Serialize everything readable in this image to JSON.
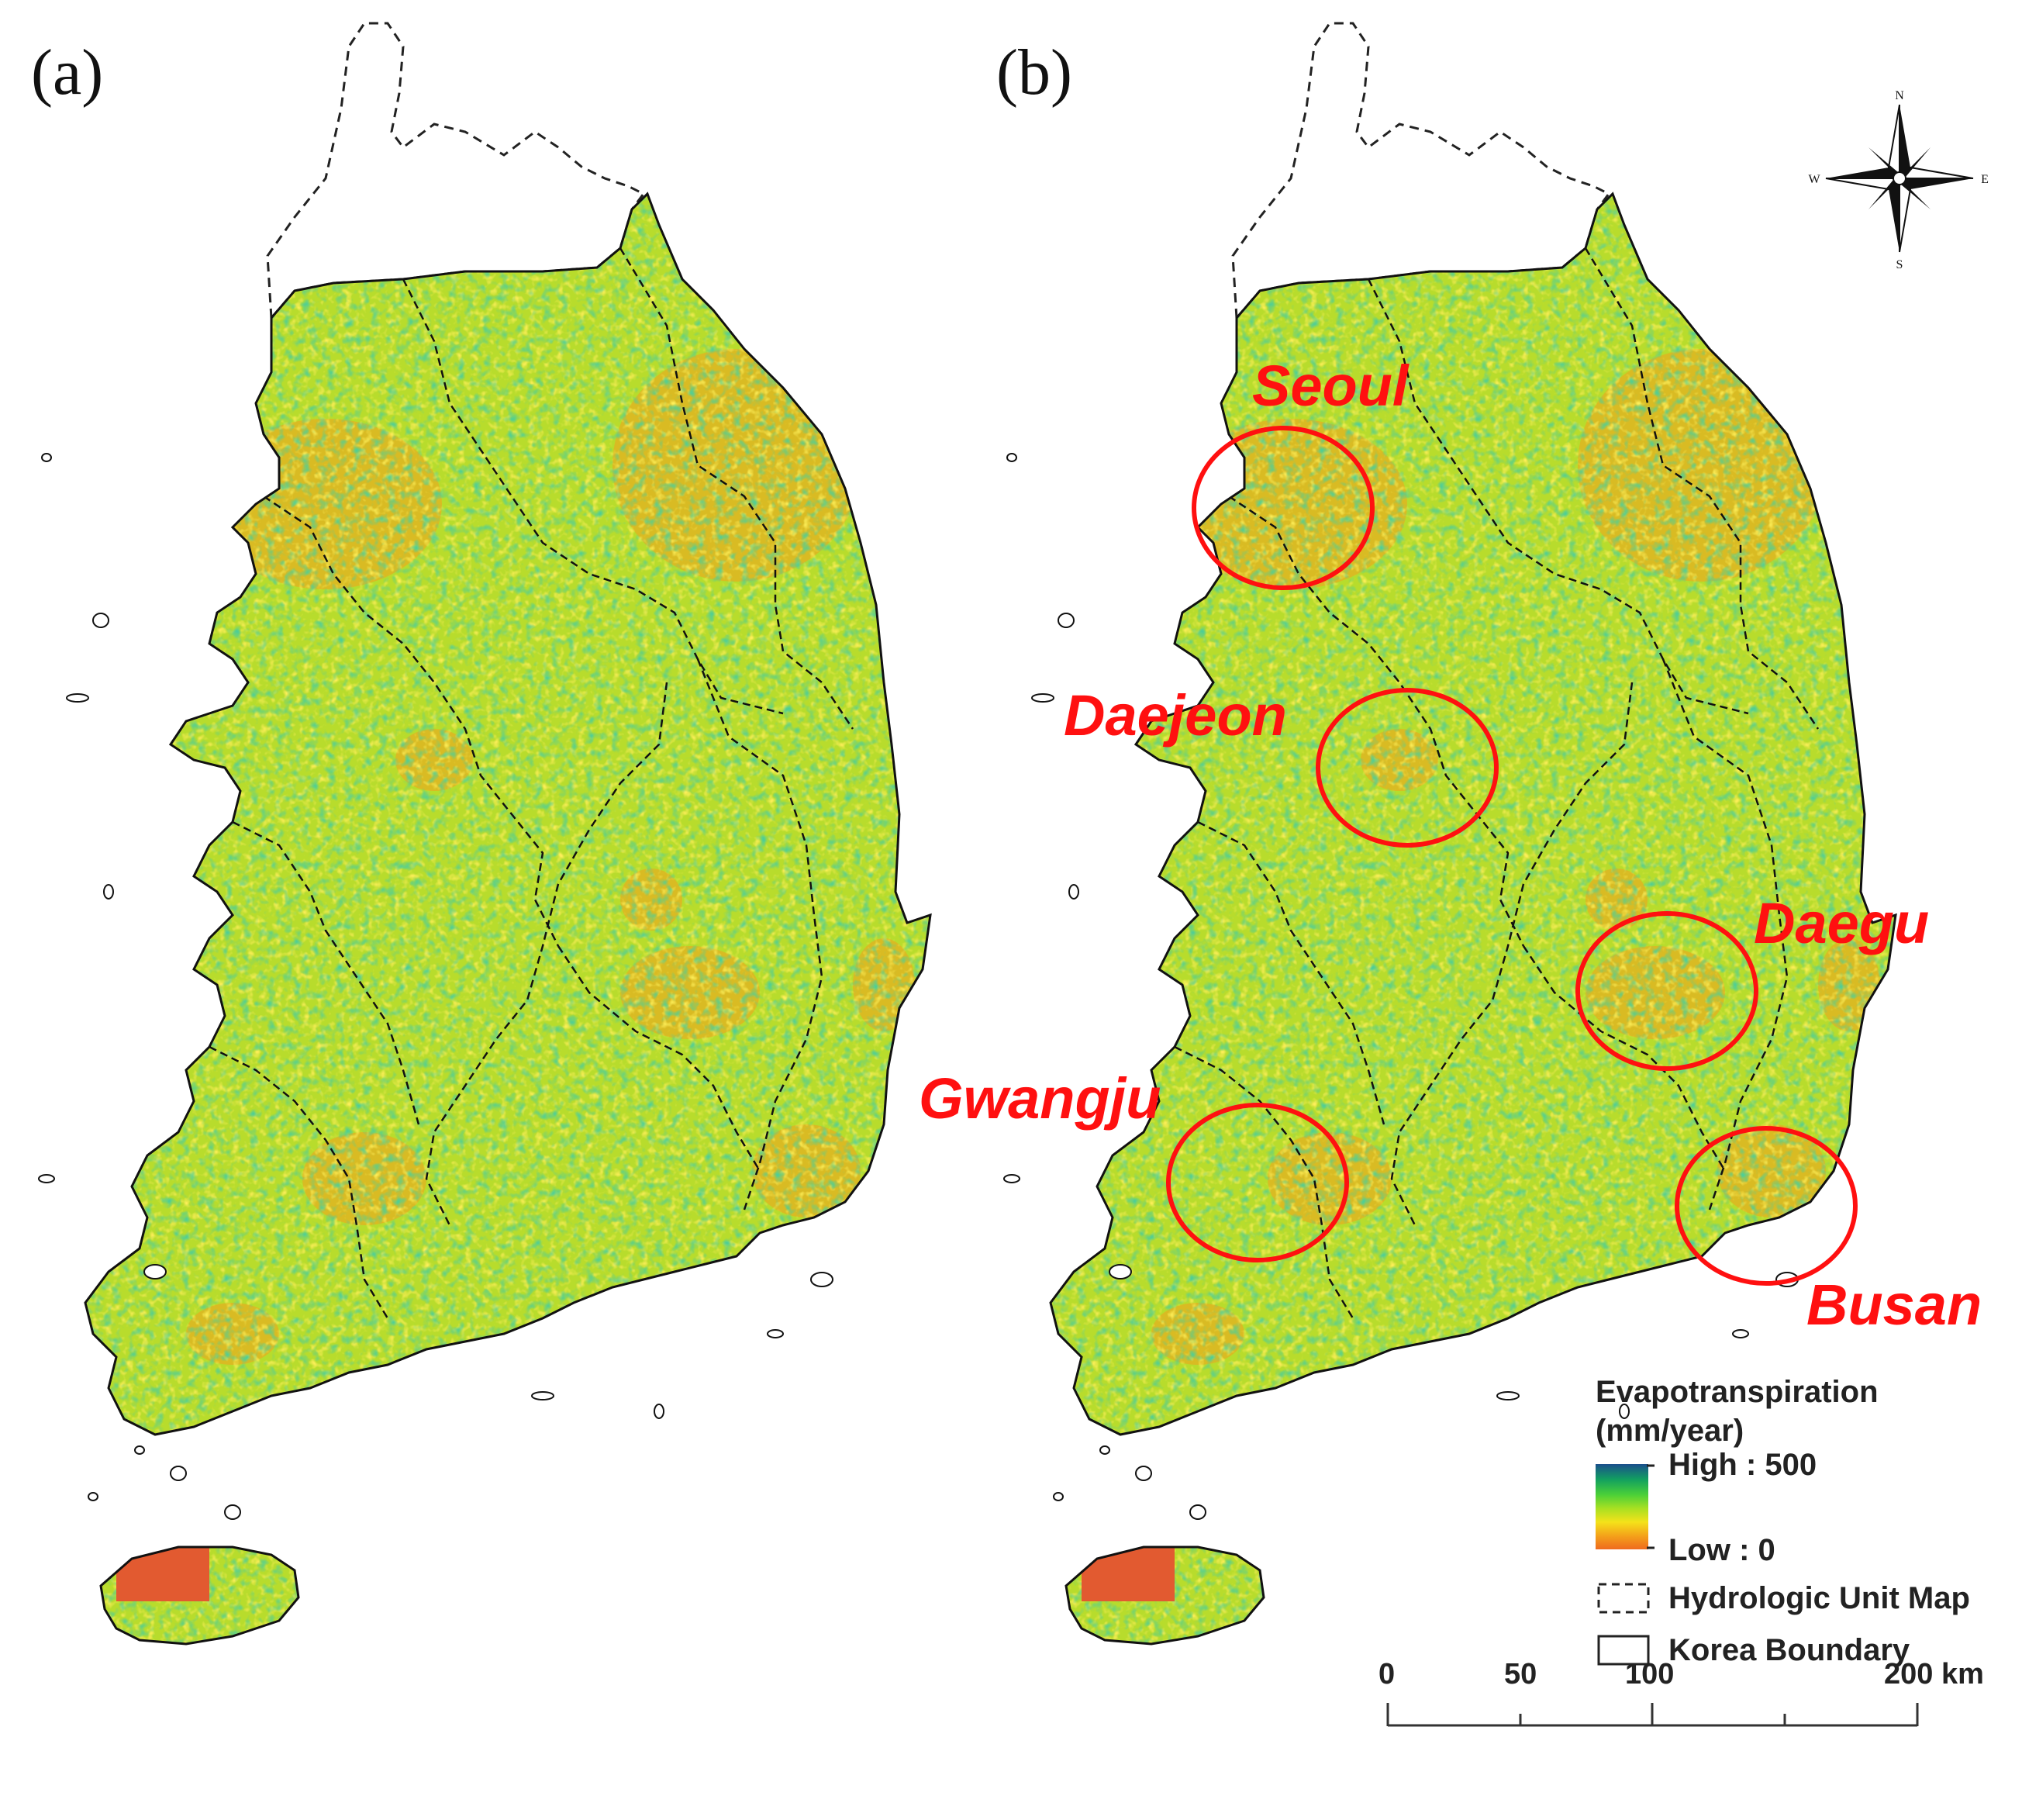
{
  "panels": [
    {
      "label": "(a)"
    },
    {
      "label": "(b)"
    }
  ],
  "cities": [
    {
      "name": "Seoul"
    },
    {
      "name": "Daejeon"
    },
    {
      "name": "Daegu"
    },
    {
      "name": "Gwangju"
    },
    {
      "name": "Busan"
    }
  ],
  "compass": {
    "n": "N",
    "s": "S",
    "e": "E",
    "w": "W"
  },
  "legend": {
    "title_line1": "Evapotranspiration",
    "title_line2": "(mm/year)",
    "high_label": "High : 500",
    "low_label": "Low : 0",
    "hydrologic_label": "Hydrologic Unit Map",
    "boundary_label": "Korea Boundary",
    "colors": [
      "#1a4f8c",
      "#12a060",
      "#4bd038",
      "#a8e022",
      "#f4e21a",
      "#f4a21a",
      "#ef6a1e"
    ]
  },
  "scale_bar": {
    "ticks": [
      "0",
      "50",
      "100",
      "200 km"
    ]
  },
  "colors": {
    "highlight": "#ff1010",
    "land_base": "#b8dc2c",
    "urban": "#f4a01e",
    "coast": "#111111"
  }
}
